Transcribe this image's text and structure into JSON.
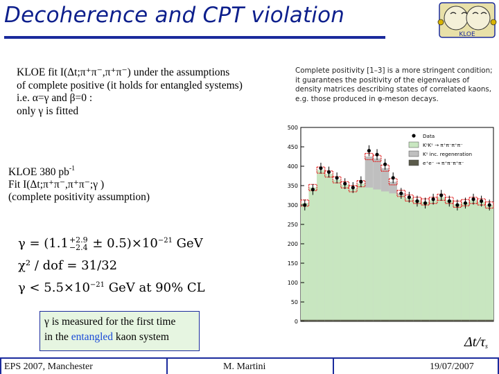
{
  "slide": {
    "title": "Decoherence and CPT violation",
    "intro_lines": [
      "KLOE fit I(Δt;π⁺π⁻,π⁺π⁻) under the assumptions",
      "of complete positive (it holds for entangled systems)",
      "i.e. α=γ and β=0 :",
      "only γ is fitted"
    ],
    "quote": "Complete positivity [1–3] is a more stringent condition; it guarantees the positivity of the eigenvalues of density matrices describing states of correlated kaons, e.g. those produced in φ-meson decays.",
    "kloe_block": {
      "line1": "KLOE  380 pb",
      "line1_sup": "-1",
      "line2": " Fit I(Δt;π⁺π⁻,π⁺π⁻;γ )",
      "line3": "(complete positivity assumption)"
    },
    "formula": {
      "gamma_eq": "γ = (1.1",
      "sup": "+2.9",
      "sub": "−2.4",
      "gamma_tail": " ± 0.5)×10",
      "exp": "−21",
      "unit": " GeV",
      "chi_line": "χ² / dof = 31/32",
      "limit_line": "γ < 5.5×10",
      "limit_exp": "−21",
      "limit_tail": " GeV  at  90% CL"
    },
    "note": {
      "line1": "γ is measured for the first time",
      "line2_a": "in the ",
      "line2_b": "entangled",
      "line2_c": "  kaon system"
    },
    "axis_unit": "Δt/τ",
    "axis_unit_sub": "s",
    "footer": {
      "left": "EPS 2007, Manchester",
      "center": "M. Martini",
      "right": "19/07/2007"
    },
    "logo_text": "KLOE",
    "colors": {
      "title": "#0d1f8c",
      "rule": "#1a2a9c",
      "note_bg": "#e6f5e1",
      "fit_fill": "#c8e6c0",
      "regeneration": "#bfbfbf",
      "background_fill": "#5a5a4a",
      "data_err": "#e02020"
    }
  },
  "chart_data": {
    "type": "bar",
    "xlabel": "Δt/τs",
    "ylabel": "",
    "ylim": [
      0,
      500
    ],
    "xlim": [
      0,
      12
    ],
    "yticks": [
      0,
      50,
      100,
      150,
      200,
      250,
      300,
      350,
      400,
      450,
      500
    ],
    "legend": [
      {
        "name": "Data",
        "kind": "marker"
      },
      {
        "name": "KˢKˢ → π⁺π⁻π⁺π⁻",
        "kind": "fill"
      },
      {
        "name": "Kˢ inc. regeneration",
        "kind": "fill"
      },
      {
        "name": "e⁺e⁻ → π⁺π⁻π⁺π⁻",
        "kind": "fill"
      }
    ],
    "legend_position": "top-right",
    "x": [
      0.25,
      0.75,
      1.25,
      1.75,
      2.25,
      2.75,
      3.25,
      3.75,
      4.25,
      4.75,
      5.25,
      5.75,
      6.25,
      6.75,
      7.25,
      7.75,
      8.25,
      8.75,
      9.25,
      9.75,
      10.25,
      10.75,
      11.25,
      11.75
    ],
    "series": [
      {
        "name": "Data",
        "values": [
          300,
          340,
          395,
          385,
          370,
          355,
          345,
          360,
          440,
          430,
          405,
          370,
          330,
          320,
          310,
          305,
          315,
          325,
          310,
          300,
          305,
          315,
          310,
          300
        ]
      },
      {
        "name": "KˢKˢ → π⁺π⁻π⁺π⁻",
        "values": [
          305,
          345,
          390,
          380,
          365,
          352,
          342,
          355,
          345,
          340,
          335,
          330,
          325,
          318,
          312,
          308,
          312,
          320,
          312,
          302,
          306,
          312,
          308,
          300
        ]
      },
      {
        "name": "Kˢ inc. regeneration",
        "values": [
          305,
          345,
          390,
          380,
          365,
          352,
          342,
          355,
          425,
          420,
          395,
          360,
          330,
          318,
          312,
          308,
          312,
          320,
          312,
          302,
          306,
          312,
          308,
          300
        ]
      },
      {
        "name": "e⁺e⁻ → π⁺π⁻π⁺π⁻",
        "values": [
          4,
          4,
          4,
          4,
          4,
          4,
          4,
          4,
          4,
          4,
          4,
          4,
          4,
          4,
          4,
          4,
          4,
          4,
          4,
          4,
          4,
          4,
          4,
          4
        ]
      }
    ]
  }
}
